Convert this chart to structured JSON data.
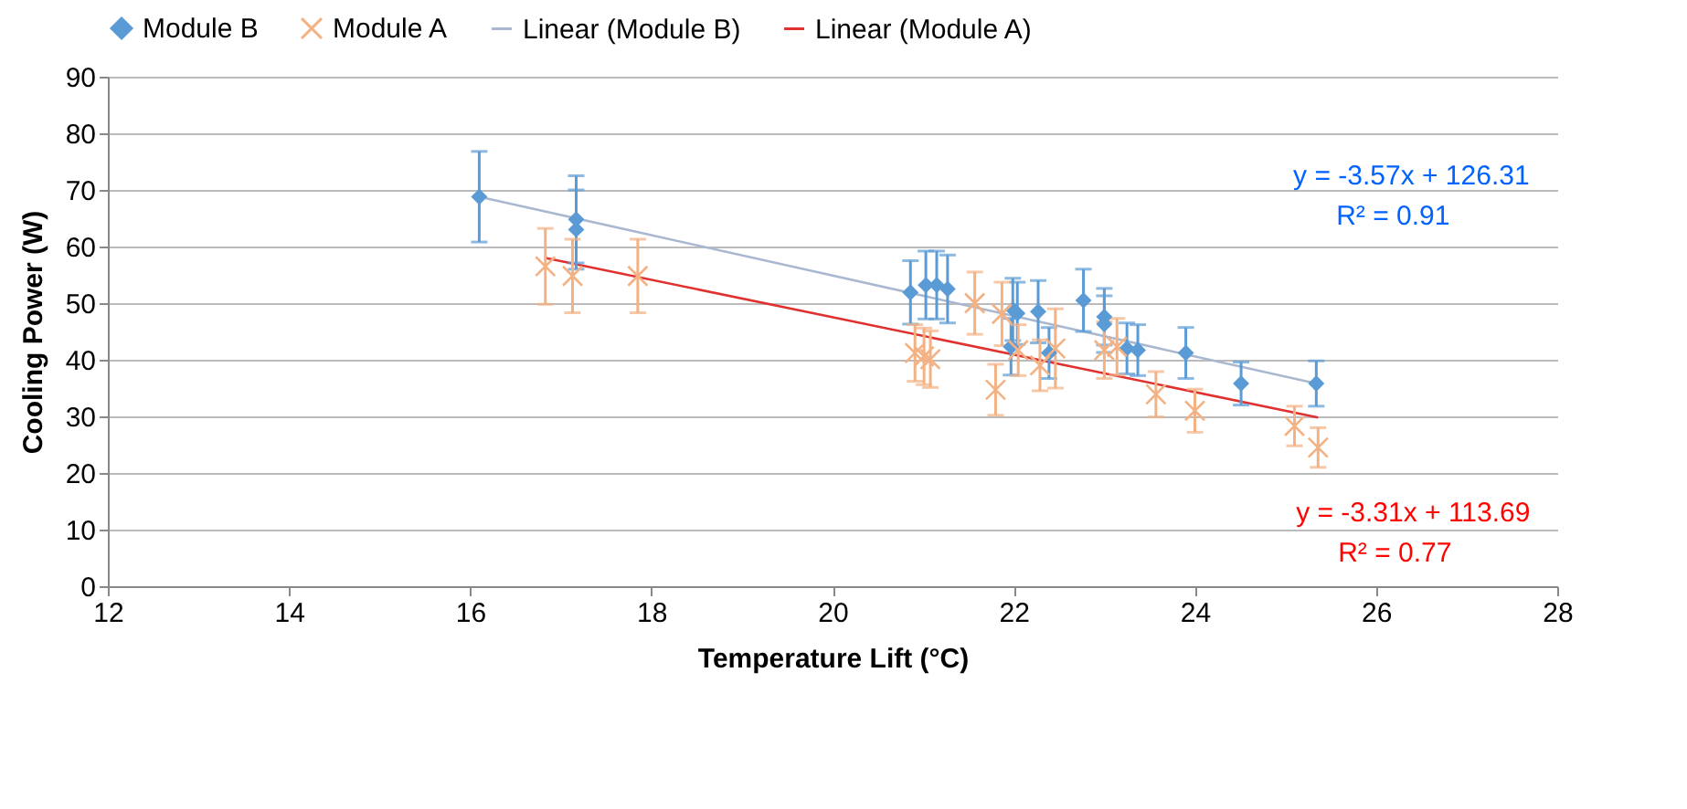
{
  "chart_data": {
    "type": "scatter",
    "xlabel": "Temperature Lift (°C)",
    "ylabel": "Cooling Power (W)",
    "xlim": [
      12,
      28
    ],
    "xticks": [
      12,
      14,
      16,
      18,
      20,
      22,
      24,
      26,
      28
    ],
    "ylim": [
      0,
      90
    ],
    "yticks": [
      0,
      10,
      20,
      30,
      40,
      50,
      60,
      70,
      80,
      90
    ],
    "grid": "y",
    "legend": "top",
    "series": [
      {
        "name": "Module B",
        "marker": "diamond",
        "color": "#5b9bd5",
        "x": [
          16.1,
          17.17,
          17.17,
          20.86,
          21.03,
          21.15,
          21.27,
          21.97,
          21.99,
          22.04,
          22.27,
          22.39,
          22.77,
          23.0,
          23.0,
          23.25,
          23.37,
          23.9,
          24.51,
          25.34
        ],
        "values": [
          68.8,
          64.8,
          63.0,
          51.9,
          53.2,
          53.2,
          52.5,
          42.3,
          48.9,
          48.2,
          48.5,
          41.2,
          50.5,
          47.6,
          46.3,
          42.0,
          41.7,
          41.2,
          35.8,
          35.8
        ],
        "errors": [
          8,
          7.7,
          7,
          5.6,
          6,
          6,
          6,
          5,
          5.5,
          5.5,
          5.5,
          4.5,
          5.5,
          5,
          5,
          4.5,
          4.5,
          4.5,
          3.8,
          4
        ]
      },
      {
        "name": "Module A",
        "marker": "cross",
        "color": "#f4b183",
        "x": [
          16.83,
          17.13,
          17.85,
          20.91,
          21.01,
          21.08,
          21.57,
          21.8,
          21.87,
          22.05,
          22.29,
          22.46,
          23.0,
          23.14,
          23.57,
          24.0,
          25.1,
          25.36
        ],
        "values": [
          56.5,
          54.8,
          54.8,
          41.2,
          40.6,
          40.1,
          50.0,
          34.7,
          48.1,
          41.7,
          39.0,
          42.0,
          41.7,
          42.3,
          33.9,
          31.0,
          28.3,
          24.5
        ],
        "errors": [
          6.7,
          6.5,
          6.5,
          5,
          5,
          5,
          5.5,
          4.5,
          5.6,
          4.5,
          4.5,
          7,
          5,
          5,
          4,
          3.8,
          3.5,
          3.5
        ]
      },
      {
        "name": "Linear (Module B)",
        "type": "line",
        "marker": "none",
        "color": "#a9b8d0",
        "x": [
          16.1,
          25.34
        ],
        "values": [
          68.8,
          35.8
        ]
      },
      {
        "name": "Linear (Module A)",
        "type": "line",
        "marker": "none",
        "color": "#e0312f",
        "x": [
          16.83,
          25.36
        ],
        "values": [
          58.0,
          29.8
        ]
      }
    ],
    "annotations": [
      "y = -3.57x + 126.31",
      "R² = 0.91",
      "y = -3.31x + 113.69",
      "R² = 0.77"
    ]
  }
}
